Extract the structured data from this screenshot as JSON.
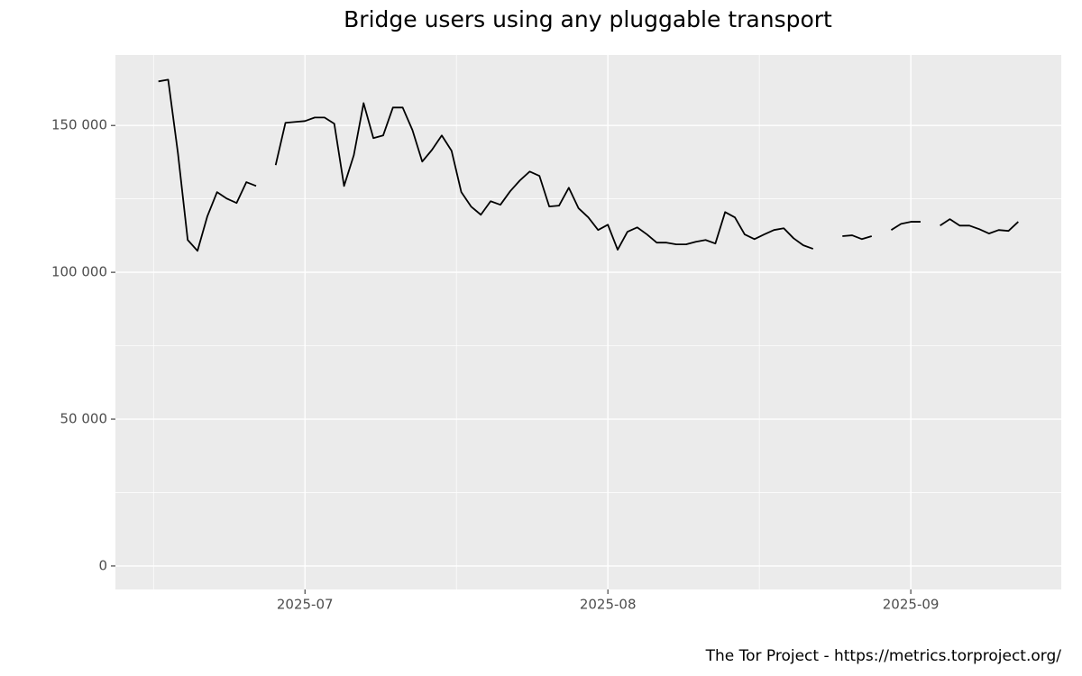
{
  "chart_data": {
    "type": "line",
    "title": "Bridge users using any pluggable transport",
    "caption": "The Tor Project - https://metrics.torproject.org/",
    "categories": [
      null,
      null,
      null,
      null,
      null,
      null,
      null,
      null,
      null,
      null,
      null,
      null,
      null,
      null,
      null,
      "2025-07",
      null,
      null,
      null,
      null,
      null,
      null,
      null,
      null,
      null,
      null,
      null,
      null,
      null,
      null,
      null,
      null,
      null,
      null,
      null,
      null,
      null,
      null,
      null,
      null,
      null,
      null,
      null,
      null,
      null,
      null,
      "2025-08",
      null,
      null,
      null,
      null,
      null,
      null,
      null,
      null,
      null,
      null,
      null,
      null,
      null,
      null,
      null,
      null,
      null,
      null,
      null,
      null,
      null,
      null,
      null,
      null,
      null,
      null,
      null,
      null,
      null,
      null,
      "2025-09",
      null,
      null,
      null,
      null,
      null,
      null,
      null,
      null,
      null,
      null,
      null
    ],
    "series": [
      {
        "name": "Bridge users",
        "color": "#000000",
        "values": [
          165000,
          165600,
          140500,
          111000,
          107300,
          119000,
          127300,
          125100,
          123600,
          130700,
          129400,
          null,
          136500,
          150900,
          151200,
          151500,
          152700,
          152700,
          150600,
          129400,
          139900,
          157600,
          145700,
          146600,
          156100,
          156100,
          148400,
          137700,
          141700,
          146600,
          141400,
          127300,
          122400,
          119600,
          124200,
          123000,
          127600,
          131300,
          134300,
          132800,
          122400,
          122700,
          128800,
          121800,
          118700,
          114400,
          116200,
          107700,
          113800,
          115300,
          112900,
          110100,
          110100,
          109500,
          109500,
          110400,
          111000,
          109800,
          120500,
          118700,
          112900,
          111300,
          112900,
          114400,
          115000,
          111600,
          109200,
          108000,
          null,
          null,
          112300,
          112600,
          111300,
          112300,
          null,
          114400,
          116500,
          117200,
          117200,
          null,
          115900,
          118100,
          115900,
          115900,
          114700,
          113200,
          114400,
          114100,
          117200
        ]
      }
    ],
    "ylim": [
      -8000,
      174000
    ],
    "yticks": [
      0,
      {
        "value": 50000,
        "label": "50 000"
      },
      {
        "value": 100000,
        "label": "100 000"
      },
      {
        "value": 150000,
        "label": "150 000"
      }
    ],
    "grid": true
  }
}
